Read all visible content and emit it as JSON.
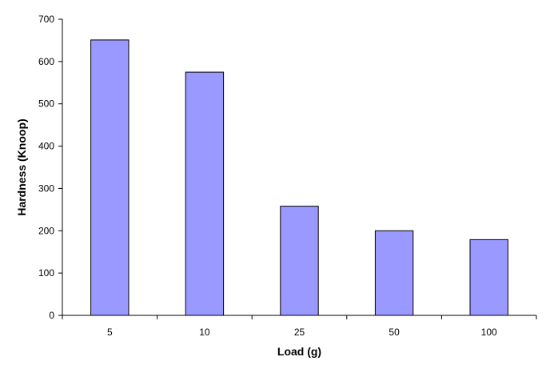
{
  "chart_data": {
    "type": "bar",
    "title": "",
    "xlabel": "Load (g)",
    "ylabel": "Hardness (Knoop)",
    "categories": [
      "5",
      "10",
      "25",
      "50",
      "100"
    ],
    "values": [
      651,
      575,
      258,
      200,
      179
    ],
    "ylim": [
      0,
      700
    ],
    "yticks": [
      0,
      100,
      200,
      300,
      400,
      500,
      600,
      700
    ],
    "grid": false,
    "legend": "none",
    "bar_color": "#9999ff",
    "bar_edge_color": "#000000"
  }
}
